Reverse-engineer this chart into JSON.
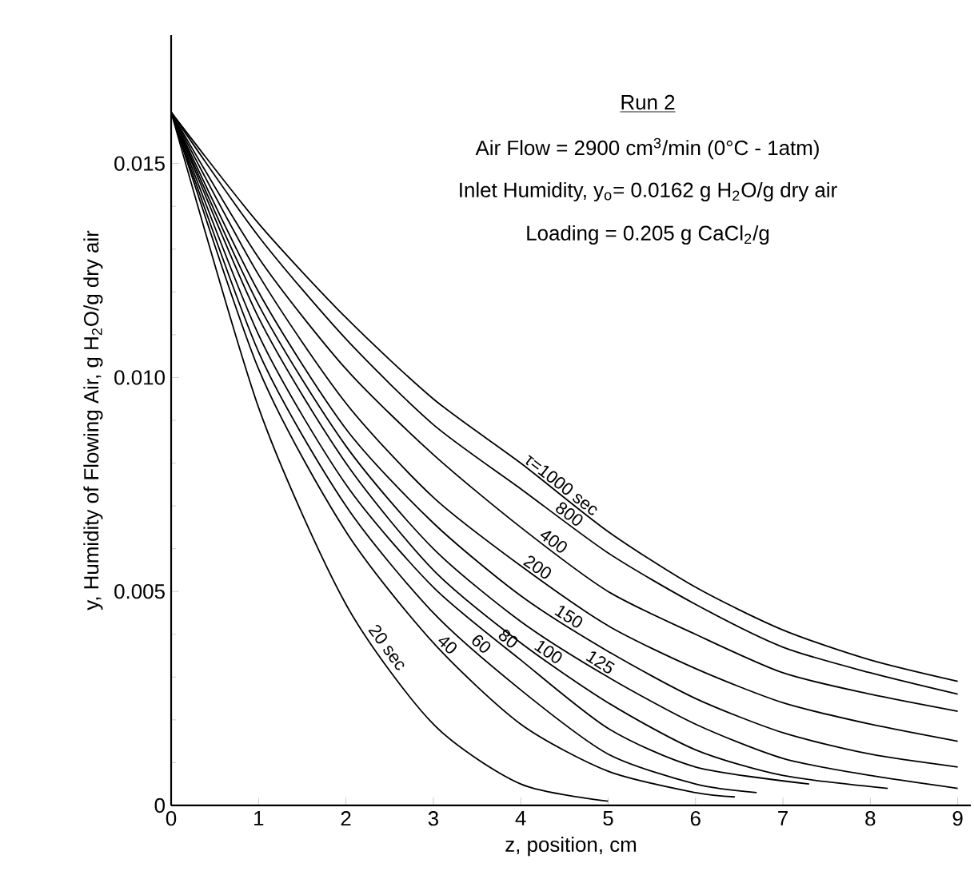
{
  "chart_data": {
    "type": "line",
    "title": "Run 2",
    "annotations": [
      "Air Flow = 2900 cm$^{3}$/min (0°C - 1atm)",
      "Inlet Humidity, y$_{o}$= 0.0162 g H$_{2}$O/g dry air",
      "Loading = 0.205 g CaCl$_{2}$/g"
    ],
    "xlabel": "z, position, cm",
    "ylabel": "y, Humidity of Flowing Air, g H$_{2}$O/g dry air",
    "xlim": [
      0,
      9.15
    ],
    "ylim": [
      0,
      0.018
    ],
    "xticks": [
      0,
      1,
      2,
      3,
      4,
      5,
      6,
      7,
      8,
      9
    ],
    "yticks": [
      {
        "value": 0,
        "label": "0"
      },
      {
        "value": 0.005,
        "label": "0.005"
      },
      {
        "value": 0.01,
        "label": "0.010"
      },
      {
        "value": 0.015,
        "label": "0.015"
      }
    ],
    "series": [
      {
        "name": "τ=1000 sec",
        "color": "#000000",
        "x": [
          0,
          1,
          2,
          3,
          4,
          5,
          6,
          7,
          8,
          9
        ],
        "values": [
          0.0162,
          0.0136,
          0.0114,
          0.0095,
          0.008,
          0.0064,
          0.0051,
          0.0041,
          0.0034,
          0.0029
        ]
      },
      {
        "name": "800",
        "color": "#000000",
        "x": [
          0,
          1,
          2,
          3,
          4,
          5,
          6,
          7,
          8,
          9
        ],
        "values": [
          0.0162,
          0.0133,
          0.0109,
          0.0089,
          0.0074,
          0.0059,
          0.0047,
          0.0037,
          0.0031,
          0.0026
        ]
      },
      {
        "name": "400",
        "color": "#000000",
        "x": [
          0,
          1,
          2,
          3,
          4,
          5,
          6,
          7,
          8,
          9
        ],
        "values": [
          0.0162,
          0.0128,
          0.0102,
          0.0082,
          0.0065,
          0.005,
          0.004,
          0.0031,
          0.0026,
          0.0022
        ]
      },
      {
        "name": "200",
        "color": "#000000",
        "x": [
          0,
          1,
          2,
          3,
          4,
          5,
          6,
          7,
          8,
          9
        ],
        "values": [
          0.0162,
          0.0124,
          0.0094,
          0.0072,
          0.0056,
          0.0042,
          0.0032,
          0.0024,
          0.0019,
          0.0015
        ]
      },
      {
        "name": "150",
        "color": "#000000",
        "x": [
          0,
          1,
          2,
          3,
          4,
          5,
          6,
          7,
          8,
          9
        ],
        "values": [
          0.0162,
          0.012,
          0.0088,
          0.0066,
          0.0049,
          0.0036,
          0.0025,
          0.0017,
          0.0012,
          0.0009
        ]
      },
      {
        "name": "125",
        "color": "#000000",
        "x": [
          0,
          1,
          2,
          3,
          4,
          5,
          6,
          7,
          8,
          9
        ],
        "values": [
          0.0162,
          0.0117,
          0.0084,
          0.006,
          0.0043,
          0.003,
          0.0019,
          0.0011,
          0.0007,
          0.0004
        ]
      },
      {
        "name": "100",
        "color": "#000000",
        "x": [
          0,
          1,
          2,
          3,
          4,
          5,
          6,
          7,
          8.2
        ],
        "values": [
          0.0162,
          0.0114,
          0.008,
          0.0055,
          0.0038,
          0.0024,
          0.0013,
          0.0007,
          0.0004
        ]
      },
      {
        "name": "80",
        "color": "#000000",
        "x": [
          0,
          1,
          2,
          3,
          4,
          5,
          6,
          7.3
        ],
        "values": [
          0.0162,
          0.011,
          0.0075,
          0.0051,
          0.0034,
          0.0018,
          0.0009,
          0.0005
        ]
      },
      {
        "name": "60",
        "color": "#000000",
        "x": [
          0,
          1,
          2,
          3,
          4,
          5,
          6,
          6.7
        ],
        "values": [
          0.0162,
          0.0106,
          0.007,
          0.0045,
          0.0027,
          0.0012,
          0.0005,
          0.0003
        ]
      },
      {
        "name": "40",
        "color": "#000000",
        "x": [
          0,
          1,
          2,
          3,
          4,
          5,
          6,
          6.45
        ],
        "values": [
          0.0162,
          0.0102,
          0.0064,
          0.0038,
          0.0019,
          0.0008,
          0.0003,
          0.0002
        ]
      },
      {
        "name": "20 sec",
        "color": "#000000",
        "x": [
          0,
          1,
          2,
          3,
          4,
          5
        ],
        "values": [
          0.0162,
          0.0093,
          0.0047,
          0.0019,
          0.0005,
          0.0001
        ]
      }
    ]
  }
}
